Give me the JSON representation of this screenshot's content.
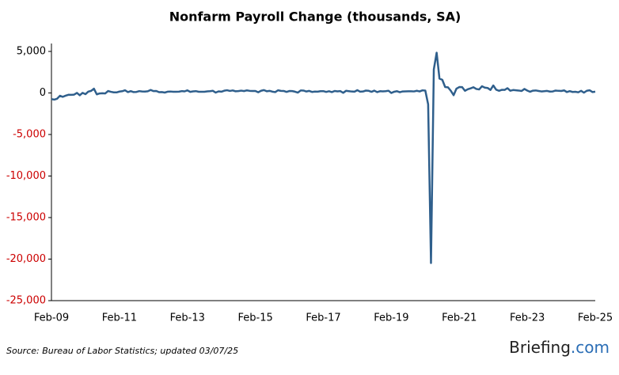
{
  "chart_data": {
    "type": "line",
    "title": "Nonfarm Payroll Change (thousands, SA)",
    "categories": [
      "Feb-09",
      null,
      null,
      null,
      null,
      null,
      null,
      null,
      null,
      null,
      null,
      null,
      null,
      null,
      null,
      null,
      null,
      null,
      null,
      null,
      null,
      null,
      null,
      null,
      "Feb-11",
      null,
      null,
      null,
      null,
      null,
      null,
      null,
      null,
      null,
      null,
      null,
      null,
      null,
      null,
      null,
      null,
      null,
      null,
      null,
      null,
      null,
      null,
      null,
      "Feb-13",
      null,
      null,
      null,
      null,
      null,
      null,
      null,
      null,
      null,
      null,
      null,
      null,
      null,
      null,
      null,
      null,
      null,
      null,
      null,
      null,
      null,
      null,
      null,
      "Feb-15",
      null,
      null,
      null,
      null,
      null,
      null,
      null,
      null,
      null,
      null,
      null,
      null,
      null,
      null,
      null,
      null,
      null,
      null,
      null,
      null,
      null,
      null,
      null,
      "Feb-17",
      null,
      null,
      null,
      null,
      null,
      null,
      null,
      null,
      null,
      null,
      null,
      null,
      null,
      null,
      null,
      null,
      null,
      null,
      null,
      null,
      null,
      null,
      null,
      "Feb-19",
      null,
      null,
      null,
      null,
      null,
      null,
      null,
      null,
      null,
      null,
      null,
      null,
      null,
      null,
      null,
      null,
      null,
      null,
      null,
      null,
      null,
      null,
      null,
      "Feb-21",
      null,
      null,
      null,
      null,
      null,
      null,
      null,
      null,
      null,
      null,
      null,
      null,
      null,
      null,
      null,
      null,
      null,
      null,
      null,
      null,
      null,
      null,
      null,
      "Feb-23",
      null,
      null,
      null,
      null,
      null,
      null,
      null,
      null,
      null,
      null,
      null,
      null,
      null,
      null,
      null,
      null,
      null,
      null,
      null,
      null,
      null,
      null,
      null,
      "Feb-25"
    ],
    "values": [
      -743,
      -800,
      -695,
      -339,
      -467,
      -327,
      -216,
      -227,
      -198,
      6,
      -283,
      14,
      -144,
      159,
      251,
      516,
      -167,
      -58,
      -40,
      -58,
      236,
      137,
      71,
      68,
      168,
      212,
      322,
      102,
      217,
      106,
      122,
      221,
      183,
      164,
      205,
      361,
      225,
      240,
      94,
      107,
      48,
      153,
      172,
      140,
      140,
      157,
      222,
      190,
      311,
      135,
      192,
      218,
      146,
      140,
      147,
      190,
      212,
      260,
      47,
      190,
      151,
      272,
      329,
      246,
      304,
      202,
      230,
      280,
      227,
      312,
      255,
      234,
      238,
      86,
      262,
      344,
      206,
      254,
      157,
      100,
      321,
      252,
      239,
      126,
      237,
      225,
      153,
      43,
      297,
      291,
      176,
      249,
      124,
      164,
      155,
      216,
      219,
      125,
      207,
      103,
      239,
      190,
      221,
      18,
      257,
      216,
      173,
      152,
      330,
      150,
      177,
      286,
      259,
      139,
      280,
      100,
      209,
      195,
      213,
      267,
      1,
      147,
      210,
      85,
      182,
      194,
      207,
      208,
      185,
      261,
      184,
      315,
      289,
      -1373,
      -20477,
      2833,
      4846,
      1726,
      1583,
      716,
      680,
      263,
      -268,
      520,
      710,
      704,
      263,
      447,
      557,
      689,
      483,
      424,
      807,
      647,
      600,
      364,
      904,
      397,
      261,
      379,
      368,
      574,
      268,
      352,
      324,
      290,
      239,
      482,
      287,
      146,
      278,
      303,
      240,
      184,
      210,
      246,
      165,
      182,
      290,
      256,
      236,
      310,
      108,
      216,
      118,
      144,
      78,
      255,
      36,
      261,
      323,
      111,
      151
    ],
    "color": "#2f5f8c",
    "ylim": [
      -25000,
      5000
    ],
    "yticks": [
      {
        "value": -25000,
        "label": "-25,000"
      },
      {
        "value": -20000,
        "label": "-20,000"
      },
      {
        "value": -15000,
        "label": "-15,000"
      },
      {
        "value": -10000,
        "label": "-10,000"
      },
      {
        "value": -5000,
        "label": "-5,000"
      },
      0,
      {
        "value": 5000,
        "label": "5,000"
      }
    ],
    "negative_tick_color": "#cc0000",
    "grid": false,
    "source": "Source: Bureau of Labor Statistics; updated 03/07/25",
    "logo": {
      "name": "Briefing",
      "suffix": ".com",
      "suffix_color": "#2a6db5"
    }
  }
}
